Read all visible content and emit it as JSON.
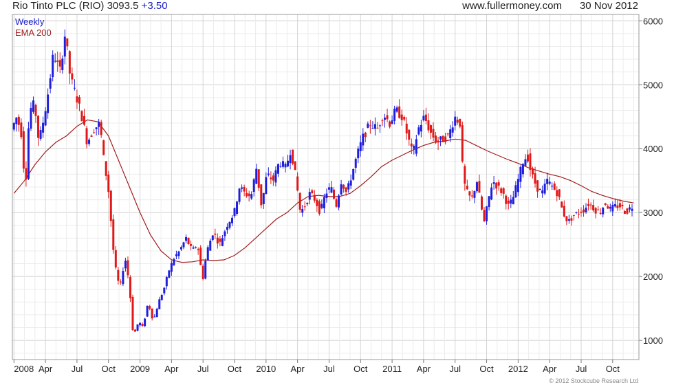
{
  "header": {
    "name": "Rio Tinto PLC",
    "ticker": "(RIO)",
    "price": "3093.5",
    "change": "+3.50",
    "site": "www.fullermoney.com",
    "date": "30 Nov 2012"
  },
  "credit": "© 2012 Stockcube Research Ltd",
  "colors": {
    "up": "#1e1edc",
    "down": "#e01818",
    "ema": "#a01c1c",
    "grid": "#dcdcdc",
    "legend_weekly": "#1a1acc",
    "legend_ema": "#a01c1c"
  },
  "chart_data": {
    "type": "candlestick",
    "legend": [
      "Weekly",
      "EMA 200"
    ],
    "ylim": [
      700,
      6100
    ],
    "y_ticks": [
      1000,
      2000,
      3000,
      4000,
      5000,
      6000
    ],
    "x_ticks": [
      {
        "label": "2008",
        "t": 0
      },
      {
        "label": "Apr",
        "t": 3
      },
      {
        "label": "Jul",
        "t": 6
      },
      {
        "label": "Oct",
        "t": 9
      },
      {
        "label": "2009",
        "t": 12
      },
      {
        "label": "Apr",
        "t": 15
      },
      {
        "label": "Jul",
        "t": 18
      },
      {
        "label": "Oct",
        "t": 21
      },
      {
        "label": "2010",
        "t": 24
      },
      {
        "label": "Apr",
        "t": 27
      },
      {
        "label": "Jul",
        "t": 30
      },
      {
        "label": "Oct",
        "t": 33
      },
      {
        "label": "2011",
        "t": 36
      },
      {
        "label": "Apr",
        "t": 39
      },
      {
        "label": "Jul",
        "t": 42
      },
      {
        "label": "Oct",
        "t": 45
      },
      {
        "label": "2012",
        "t": 48
      },
      {
        "label": "Apr",
        "t": 51
      },
      {
        "label": "Jul",
        "t": 54
      },
      {
        "label": "Oct",
        "t": 57
      }
    ],
    "x_range": [
      -0.15,
      59.5
    ],
    "price_path": [
      [
        0.0,
        4300
      ],
      [
        0.5,
        4500
      ],
      [
        1.0,
        4200
      ],
      [
        1.3,
        3300
      ],
      [
        1.7,
        4600
      ],
      [
        2.2,
        4700
      ],
      [
        2.6,
        4100
      ],
      [
        3.1,
        4500
      ],
      [
        3.5,
        4900
      ],
      [
        4.0,
        5500
      ],
      [
        4.6,
        5200
      ],
      [
        5.1,
        5800
      ],
      [
        5.6,
        5100
      ],
      [
        6.2,
        4800
      ],
      [
        6.7,
        4500
      ],
      [
        7.2,
        4100
      ],
      [
        7.8,
        4300
      ],
      [
        8.4,
        4400
      ],
      [
        8.8,
        3800
      ],
      [
        9.2,
        3400
      ],
      [
        9.5,
        2800
      ],
      [
        9.8,
        2200
      ],
      [
        10.3,
        1800
      ],
      [
        10.8,
        2300
      ],
      [
        11.2,
        1900
      ],
      [
        11.6,
        1050
      ],
      [
        12.1,
        1300
      ],
      [
        12.5,
        1200
      ],
      [
        13.0,
        1600
      ],
      [
        13.5,
        1300
      ],
      [
        14.0,
        1600
      ],
      [
        14.5,
        1800
      ],
      [
        15.0,
        2100
      ],
      [
        15.5,
        2300
      ],
      [
        16.0,
        2400
      ],
      [
        16.6,
        2600
      ],
      [
        17.2,
        2400
      ],
      [
        17.7,
        2500
      ],
      [
        18.2,
        1950
      ],
      [
        18.6,
        2400
      ],
      [
        19.2,
        2700
      ],
      [
        19.8,
        2500
      ],
      [
        20.5,
        2800
      ],
      [
        21.2,
        3000
      ],
      [
        21.7,
        3400
      ],
      [
        22.2,
        3300
      ],
      [
        22.8,
        3250
      ],
      [
        23.3,
        3700
      ],
      [
        23.8,
        3100
      ],
      [
        24.3,
        3600
      ],
      [
        24.9,
        3500
      ],
      [
        25.5,
        3800
      ],
      [
        26.1,
        3700
      ],
      [
        26.6,
        4000
      ],
      [
        27.1,
        3500
      ],
      [
        27.5,
        3000
      ],
      [
        27.9,
        3100
      ],
      [
        28.4,
        3300
      ],
      [
        28.9,
        3200
      ],
      [
        29.4,
        3000
      ],
      [
        29.9,
        3300
      ],
      [
        30.4,
        3400
      ],
      [
        30.9,
        3100
      ],
      [
        31.4,
        3500
      ],
      [
        31.9,
        3300
      ],
      [
        32.4,
        3600
      ],
      [
        32.9,
        3900
      ],
      [
        33.5,
        4200
      ],
      [
        34.2,
        4400
      ],
      [
        34.8,
        4300
      ],
      [
        35.4,
        4550
      ],
      [
        36.0,
        4400
      ],
      [
        36.6,
        4600
      ],
      [
        37.2,
        4500
      ],
      [
        37.7,
        4200
      ],
      [
        38.2,
        3900
      ],
      [
        38.7,
        4300
      ],
      [
        39.3,
        4500
      ],
      [
        39.9,
        4250
      ],
      [
        40.5,
        4100
      ],
      [
        41.1,
        4150
      ],
      [
        41.6,
        4200
      ],
      [
        42.2,
        4500
      ],
      [
        42.7,
        4400
      ],
      [
        43.0,
        3500
      ],
      [
        43.4,
        3300
      ],
      [
        43.8,
        3200
      ],
      [
        44.3,
        3500
      ],
      [
        44.7,
        3100
      ],
      [
        45.0,
        2850
      ],
      [
        45.4,
        3200
      ],
      [
        45.8,
        3500
      ],
      [
        46.3,
        3400
      ],
      [
        46.8,
        3300
      ],
      [
        47.3,
        3100
      ],
      [
        47.7,
        3200
      ],
      [
        48.2,
        3500
      ],
      [
        48.7,
        3800
      ],
      [
        49.1,
        3900
      ],
      [
        49.5,
        3600
      ],
      [
        50.0,
        3400
      ],
      [
        50.5,
        3300
      ],
      [
        51.0,
        3500
      ],
      [
        51.5,
        3400
      ],
      [
        52.0,
        3300
      ],
      [
        52.5,
        3000
      ],
      [
        53.0,
        2850
      ],
      [
        53.5,
        2950
      ],
      [
        54.0,
        3000
      ],
      [
        54.5,
        3050
      ],
      [
        55.0,
        3150
      ],
      [
        55.5,
        3050
      ],
      [
        56.0,
        3000
      ],
      [
        56.5,
        3150
      ],
      [
        57.0,
        3050
      ],
      [
        57.5,
        3100
      ],
      [
        58.0,
        3100
      ],
      [
        58.5,
        3000
      ],
      [
        59.0,
        3093.5
      ]
    ],
    "ema_200": [
      [
        0.0,
        3300
      ],
      [
        1.0,
        3500
      ],
      [
        2.0,
        3750
      ],
      [
        3.0,
        3950
      ],
      [
        4.0,
        4100
      ],
      [
        5.0,
        4200
      ],
      [
        6.0,
        4350
      ],
      [
        7.0,
        4450
      ],
      [
        8.0,
        4420
      ],
      [
        9.0,
        4200
      ],
      [
        10.0,
        3800
      ],
      [
        11.0,
        3400
      ],
      [
        12.0,
        3000
      ],
      [
        13.0,
        2650
      ],
      [
        14.0,
        2400
      ],
      [
        15.0,
        2260
      ],
      [
        16.0,
        2220
      ],
      [
        17.0,
        2230
      ],
      [
        18.0,
        2260
      ],
      [
        19.0,
        2250
      ],
      [
        20.0,
        2260
      ],
      [
        21.0,
        2330
      ],
      [
        22.0,
        2450
      ],
      [
        23.0,
        2600
      ],
      [
        24.0,
        2750
      ],
      [
        25.0,
        2900
      ],
      [
        26.0,
        3000
      ],
      [
        27.0,
        3150
      ],
      [
        28.0,
        3250
      ],
      [
        29.0,
        3270
      ],
      [
        30.0,
        3250
      ],
      [
        31.0,
        3250
      ],
      [
        32.0,
        3300
      ],
      [
        33.0,
        3420
      ],
      [
        34.0,
        3560
      ],
      [
        35.0,
        3720
      ],
      [
        36.0,
        3820
      ],
      [
        37.0,
        3900
      ],
      [
        38.0,
        3980
      ],
      [
        39.0,
        4050
      ],
      [
        40.0,
        4100
      ],
      [
        41.0,
        4120
      ],
      [
        42.0,
        4150
      ],
      [
        43.0,
        4130
      ],
      [
        44.0,
        4050
      ],
      [
        45.0,
        3970
      ],
      [
        46.0,
        3900
      ],
      [
        47.0,
        3830
      ],
      [
        48.0,
        3770
      ],
      [
        49.0,
        3700
      ],
      [
        50.0,
        3650
      ],
      [
        51.0,
        3600
      ],
      [
        52.0,
        3560
      ],
      [
        53.0,
        3500
      ],
      [
        54.0,
        3420
      ],
      [
        55.0,
        3330
      ],
      [
        56.0,
        3270
      ],
      [
        57.0,
        3220
      ],
      [
        58.0,
        3180
      ],
      [
        59.0,
        3150
      ]
    ]
  }
}
